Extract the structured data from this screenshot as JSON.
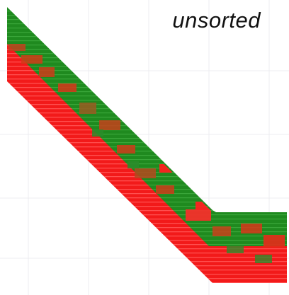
{
  "caption": "unsorted",
  "colors": {
    "background": "#ffffff",
    "grid": "#e9e9ee",
    "red_layer": "#f21a1a",
    "red_stripe": "#ff4a4a",
    "green_layer": "#1f8a1f",
    "green_stripe": "#33a333",
    "mixed": "#8a7a2a"
  },
  "legend_meaning": {
    "sort_state": "unsorted"
  }
}
